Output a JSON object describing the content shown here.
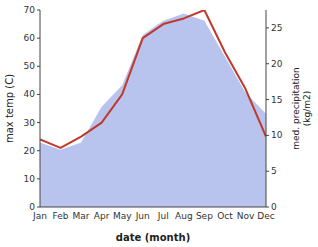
{
  "chart_data": {
    "type": "line",
    "xlabel": "date (month)",
    "ylabel": "max temp (C)",
    "y2label": "med. precipitation\n(kg/m2)",
    "categories": [
      "Jan",
      "Feb",
      "Mar",
      "Apr",
      "May",
      "Jun",
      "Jul",
      "Aug",
      "Sep",
      "Oct",
      "Nov",
      "Dec"
    ],
    "series": [
      {
        "type": "area",
        "color": "#b8c4ee",
        "axis": "y2",
        "values": [
          9,
          8,
          9,
          14,
          17,
          24,
          26,
          27,
          26,
          21,
          16,
          13
        ]
      },
      {
        "type": "line",
        "color": "#c0392b",
        "values": [
          24,
          21,
          25,
          30,
          40,
          60,
          65,
          67,
          70,
          55,
          42,
          25
        ]
      }
    ],
    "ylim": [
      0,
      70
    ],
    "yticks": [
      0,
      10,
      20,
      30,
      40,
      50,
      60,
      70
    ],
    "y2lim": [
      0,
      27.5
    ],
    "y2ticks": [
      0,
      5,
      10,
      15,
      20,
      25
    ],
    "grid": false
  }
}
